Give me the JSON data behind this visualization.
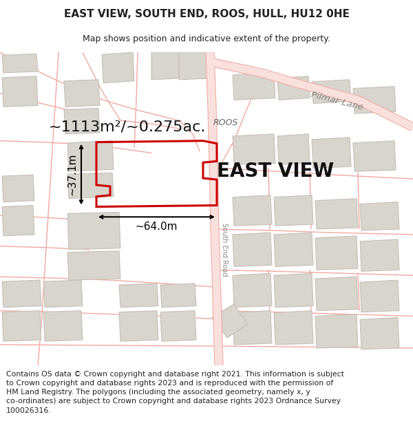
{
  "title": "EAST VIEW, SOUTH END, ROOS, HULL, HU12 0HE",
  "subtitle": "Map shows position and indicative extent of the property.",
  "footer": "Contains OS data © Crown copyright and database right 2021. This information is subject\nto Crown copyright and database rights 2023 and is reproduced with the permission of\nHM Land Registry. The polygons (including the associated geometry, namely x, y\nco-ordinates) are subject to Crown copyright and database rights 2023 Ordnance Survey\n100026316.",
  "area_label": "~1113m²/~0.275ac.",
  "property_label": "EAST VIEW",
  "width_label": "~64.0m",
  "height_label": "~37.1m",
  "road_label": "South End Road",
  "village_label": "ROOS",
  "lane_label": "Pilmar Lane",
  "map_bg": "#ffffff",
  "road_line_color": "#f0a8a0",
  "road_fill_color": "#f9e0dd",
  "building_fill": "#d8d4ce",
  "building_outline": "#c8c0b8",
  "property_outline": "#cc0000",
  "property_fill": "none",
  "dimension_color": "#000000",
  "title_fontsize": 11,
  "subtitle_fontsize": 9,
  "footer_fontsize": 7.8,
  "area_label_fontsize": 16,
  "property_label_fontsize": 20,
  "dim_label_fontsize": 11,
  "label_color": "#888888",
  "text_color": "#222222"
}
